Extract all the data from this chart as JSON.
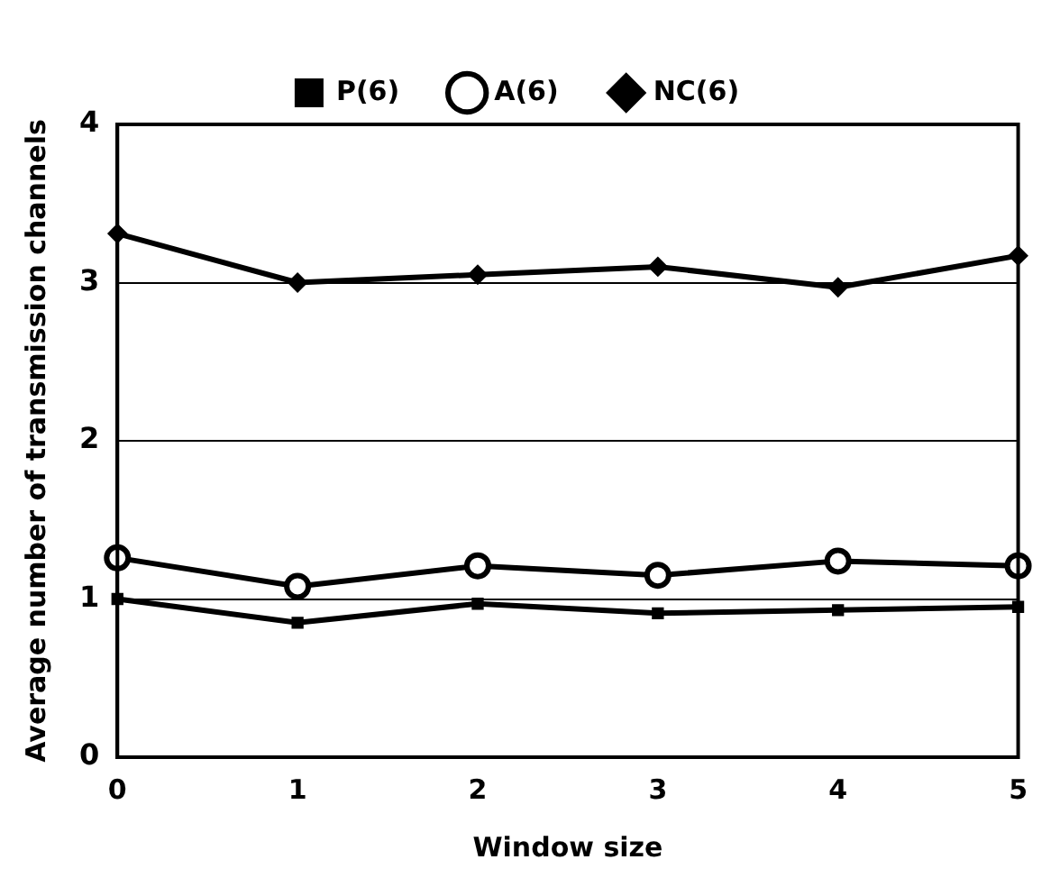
{
  "chart_data": {
    "type": "line",
    "xlabel": "Window size",
    "ylabel": "Average number of transmission channels",
    "categories": [
      "0",
      "1",
      "2",
      "3",
      "4",
      "5"
    ],
    "series": [
      {
        "name": "P(6)",
        "color": "#000000",
        "marker": "square",
        "values": [
          1.0,
          0.85,
          0.97,
          0.91,
          0.93,
          0.95
        ]
      },
      {
        "name": "A(6)",
        "color": "#000000",
        "marker": "circle",
        "values": [
          1.26,
          1.08,
          1.21,
          1.15,
          1.24,
          1.21
        ]
      },
      {
        "name": "NC(6)",
        "color": "#000000",
        "marker": "diamond",
        "values": [
          3.31,
          3.0,
          3.05,
          3.1,
          2.97,
          3.17
        ]
      }
    ],
    "ylim": [
      0,
      4
    ],
    "yticks": [
      0,
      1,
      2,
      3,
      4
    ],
    "grid": "y",
    "legend": "top",
    "line_style": "solid"
  }
}
